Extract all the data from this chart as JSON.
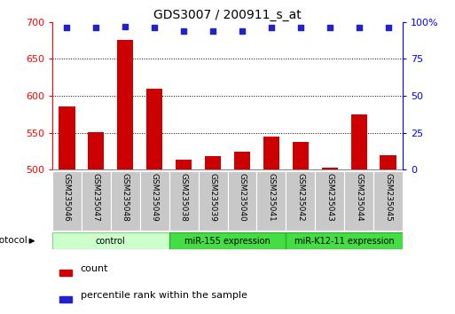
{
  "title": "GDS3007 / 200911_s_at",
  "samples": [
    "GSM235046",
    "GSM235047",
    "GSM235048",
    "GSM235049",
    "GSM235038",
    "GSM235039",
    "GSM235040",
    "GSM235041",
    "GSM235042",
    "GSM235043",
    "GSM235044",
    "GSM235045"
  ],
  "counts": [
    585,
    551,
    676,
    610,
    513,
    518,
    524,
    545,
    538,
    503,
    575,
    520
  ],
  "percentile_ranks": [
    96,
    96,
    97,
    96,
    94,
    94,
    94,
    96,
    96,
    96,
    96,
    96
  ],
  "groups": [
    {
      "label": "control",
      "start": 0,
      "end": 4,
      "color": "#ccffcc",
      "edge": "#88cc88"
    },
    {
      "label": "miR-155 expression",
      "start": 4,
      "end": 8,
      "color": "#44dd44",
      "edge": "#22aa22"
    },
    {
      "label": "miR-K12-11 expression",
      "start": 8,
      "end": 12,
      "color": "#44dd44",
      "edge": "#22aa22"
    }
  ],
  "ylim_left": [
    500,
    700
  ],
  "ylim_right": [
    0,
    100
  ],
  "yticks_left": [
    500,
    550,
    600,
    650,
    700
  ],
  "yticks_right": [
    0,
    25,
    50,
    75,
    100
  ],
  "bar_color": "#cc0000",
  "dot_color": "#2222cc",
  "grid_color": "#000000",
  "background_color": "#ffffff",
  "title_fontsize": 10,
  "legend_label_count": "count",
  "legend_label_percentile": "percentile rank within the sample",
  "label_box_color": "#c8c8c8",
  "label_box_edge": "#888888"
}
